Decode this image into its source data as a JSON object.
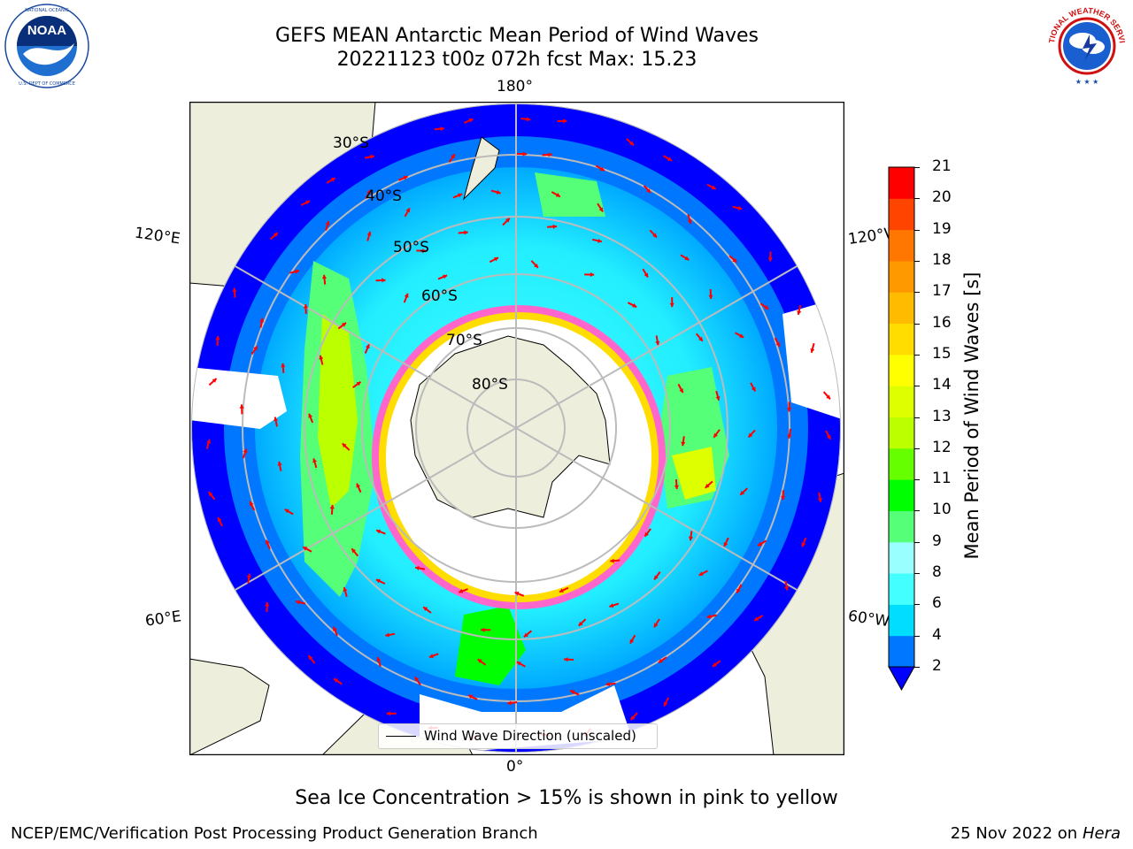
{
  "header": {
    "title_line1": "GEFS MEAN Antarctic Mean Period of Wind Waves",
    "title_line2": "20221123 t00z 072h fcst   Max: 15.23"
  },
  "logos": {
    "left": {
      "name": "noaa-logo",
      "text": "NOAA",
      "ring_text": "NATIONAL OCEANIC AND ATMOSPHERIC ADMINISTRATION · U.S. DEPARTMENT OF COMMERCE"
    },
    "right": {
      "name": "nws-logo",
      "ring_text": "NATIONAL WEATHER SERVICE"
    }
  },
  "map": {
    "projection": "south-polar-stereographic",
    "longitude_labels": {
      "top": "180°",
      "bottom": "0°",
      "left_upper": "120°E",
      "left_lower": "60°E",
      "right_upper": "120°W",
      "right_lower": "60°W"
    },
    "latitude_labels": [
      "30°S",
      "40°S",
      "50°S",
      "60°S",
      "70°S",
      "80°S"
    ],
    "colors": {
      "land": "#eeeedc",
      "ice_edge": "#ff66cc",
      "arrow": "#ff0000",
      "grid": "#bbbbbb",
      "ocean_no_data": "#ffffff"
    }
  },
  "colorbar": {
    "label": "Mean Period of Wind Waves [s]",
    "ticks": [
      "2",
      "4",
      "6",
      "8",
      "9",
      "10",
      "11",
      "12",
      "13",
      "14",
      "15",
      "16",
      "17",
      "18",
      "19",
      "20",
      "21"
    ],
    "colors": [
      "#0000ff",
      "#0077ff",
      "#00ddff",
      "#44ffff",
      "#99ffff",
      "#55ff77",
      "#00ff00",
      "#66ff00",
      "#bbff00",
      "#ddff00",
      "#ffff00",
      "#ffdd00",
      "#ffbb00",
      "#ff9900",
      "#ff7700",
      "#ff4400",
      "#ff0000"
    ]
  },
  "legend": {
    "entry": "Wind Wave Direction (unscaled)"
  },
  "caption": "Sea Ice Concentration > 15% is shown in pink to yellow",
  "footer": {
    "left": "NCEP/EMC/Verification Post Processing Product Generation Branch",
    "right_date": "25 Nov 2022 on",
    "right_machine": "Hera"
  }
}
